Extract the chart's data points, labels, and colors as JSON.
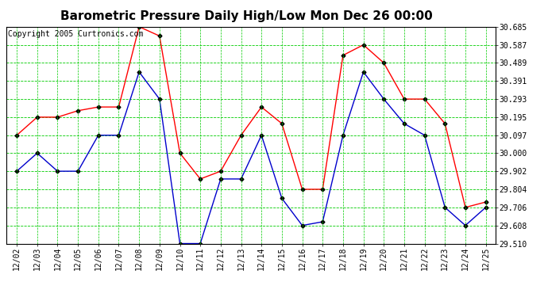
{
  "title": "Barometric Pressure Daily High/Low Mon Dec 26 00:00",
  "copyright": "Copyright 2005 Curtronics.com",
  "x_labels": [
    "12/02",
    "12/03",
    "12/04",
    "12/05",
    "12/06",
    "12/07",
    "12/08",
    "12/09",
    "12/10",
    "12/11",
    "12/12",
    "12/13",
    "12/14",
    "12/15",
    "12/16",
    "12/17",
    "12/18",
    "12/19",
    "12/20",
    "12/21",
    "12/22",
    "12/23",
    "12/24",
    "12/25"
  ],
  "high_values": [
    30.097,
    30.195,
    30.195,
    30.23,
    30.25,
    30.25,
    30.685,
    30.635,
    30.0,
    29.86,
    29.902,
    30.097,
    30.25,
    30.16,
    29.804,
    29.804,
    30.53,
    30.587,
    30.489,
    30.293,
    30.293,
    30.16,
    29.706,
    29.735
  ],
  "low_values": [
    29.902,
    30.0,
    29.902,
    29.902,
    30.097,
    30.097,
    30.44,
    30.293,
    29.51,
    29.51,
    29.86,
    29.86,
    30.097,
    29.755,
    29.608,
    29.628,
    30.097,
    30.44,
    30.293,
    30.16,
    30.097,
    29.706,
    29.608,
    29.706
  ],
  "high_color": "#ff0000",
  "low_color": "#0000cc",
  "marker": "D",
  "marker_size": 2.5,
  "marker_color": "#000000",
  "ylim_min": 29.51,
  "ylim_max": 30.685,
  "yticks": [
    29.51,
    29.608,
    29.706,
    29.804,
    29.902,
    30.0,
    30.097,
    30.195,
    30.293,
    30.391,
    30.489,
    30.587,
    30.685
  ],
  "background_color": "#ffffff",
  "grid_color": "#00cc00",
  "title_fontsize": 11,
  "tick_fontsize": 7,
  "copyright_fontsize": 7
}
